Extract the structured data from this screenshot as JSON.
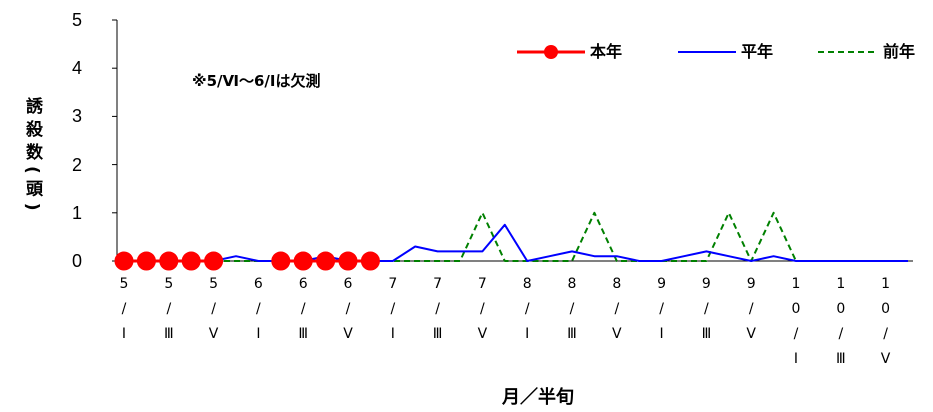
{
  "chart_data": {
    "type": "line",
    "categories": [
      "5/Ⅰ",
      "",
      "5/Ⅲ",
      "",
      "5/Ⅴ",
      "",
      "6/Ⅰ",
      "",
      "6/Ⅲ",
      "",
      "6/Ⅴ",
      "",
      "7/Ⅰ",
      "",
      "7/Ⅲ",
      "",
      "7/Ⅴ",
      "",
      "8/Ⅰ",
      "",
      "8/Ⅲ",
      "",
      "8/Ⅴ",
      "",
      "9/Ⅰ",
      "",
      "9/Ⅲ",
      "",
      "9/Ⅴ",
      "",
      "10/Ⅰ",
      "",
      "10/Ⅲ",
      "",
      "10/Ⅴ",
      ""
    ],
    "series": [
      {
        "name": "本年",
        "color": "#ff0000",
        "line_style": "solid",
        "marker": "circle",
        "values": [
          0,
          0,
          0,
          0,
          0,
          null,
          null,
          0,
          0,
          0,
          0,
          0,
          null,
          null,
          null,
          null,
          null,
          null,
          null,
          null,
          null,
          null,
          null,
          null,
          null,
          null,
          null,
          null,
          null,
          null,
          null,
          null,
          null,
          null,
          null,
          null
        ]
      },
      {
        "name": "平年",
        "color": "#0000ff",
        "line_style": "solid",
        "marker": "none",
        "values": [
          0,
          0,
          0,
          0,
          0,
          0.1,
          0,
          0,
          0,
          0.1,
          0,
          0,
          0,
          0.3,
          0.2,
          0.2,
          0.2,
          0.75,
          0,
          0.1,
          0.2,
          0.1,
          0.1,
          0,
          0,
          0.1,
          0.2,
          0.1,
          0,
          0.1,
          0,
          0,
          0,
          0,
          0,
          0
        ]
      },
      {
        "name": "前年",
        "color": "#008000",
        "line_style": "dashed",
        "marker": "none",
        "values": [
          0,
          0,
          0,
          0,
          0,
          0,
          0,
          0,
          0,
          0,
          0,
          0,
          0,
          0,
          0,
          0,
          1,
          0,
          0,
          0,
          0,
          1,
          0,
          0,
          0,
          0,
          0,
          1,
          0,
          1,
          0,
          0,
          0,
          0,
          0,
          0
        ]
      }
    ],
    "xlabel": "月／半旬",
    "ylabel": "誘殺数(頭)",
    "ylim": [
      0,
      5
    ],
    "yticks": [
      0,
      1,
      2,
      3,
      4,
      5
    ],
    "annotation": "※5/Ⅵ～6/Ⅰは欠測",
    "legend_position": "top-right",
    "grid": false
  }
}
